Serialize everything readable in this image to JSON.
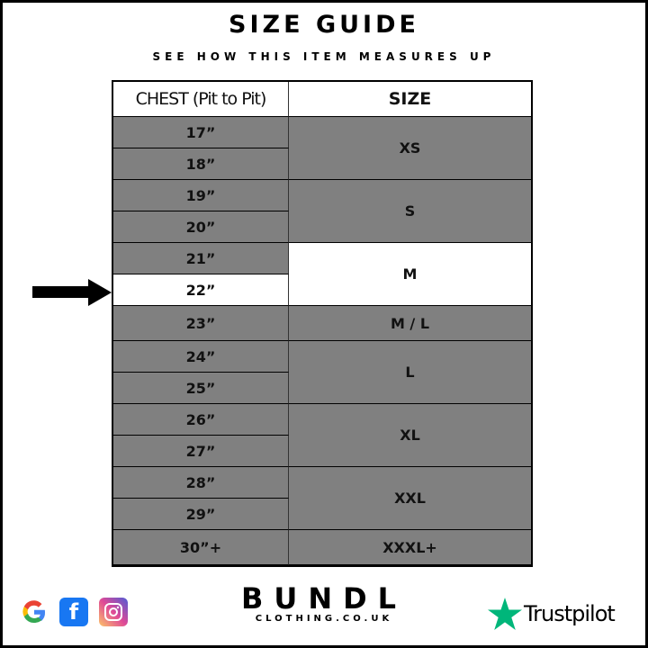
{
  "title": "SIZE GUIDE",
  "subtitle": "SEE HOW THIS ITEM MEASURES UP",
  "table": {
    "headers": [
      "CHEST (Pit to Pit)",
      "SIZE"
    ],
    "chest": [
      "17”",
      "18”",
      "19”",
      "20”",
      "21”",
      "22”",
      "23”",
      "24”",
      "25”",
      "26”",
      "27”",
      "28”",
      "29”",
      "30”+"
    ],
    "sizes": [
      "XS",
      "S",
      "M",
      "M / L",
      "L",
      "XL",
      "XXL",
      "XXXL+"
    ],
    "highlighted_chest": "22”",
    "highlighted_size": "M"
  },
  "footer": {
    "brand": "BUNDL",
    "brand_sub": "CLOTHING.CO.UK",
    "trustpilot": "Trustpilot",
    "icons": [
      "google-icon",
      "facebook-icon",
      "instagram-icon",
      "trustpilot-star-icon"
    ]
  },
  "colors": {
    "cell": "#808080",
    "highlight": "#ffffff",
    "trustpilot": "#00b67a"
  }
}
